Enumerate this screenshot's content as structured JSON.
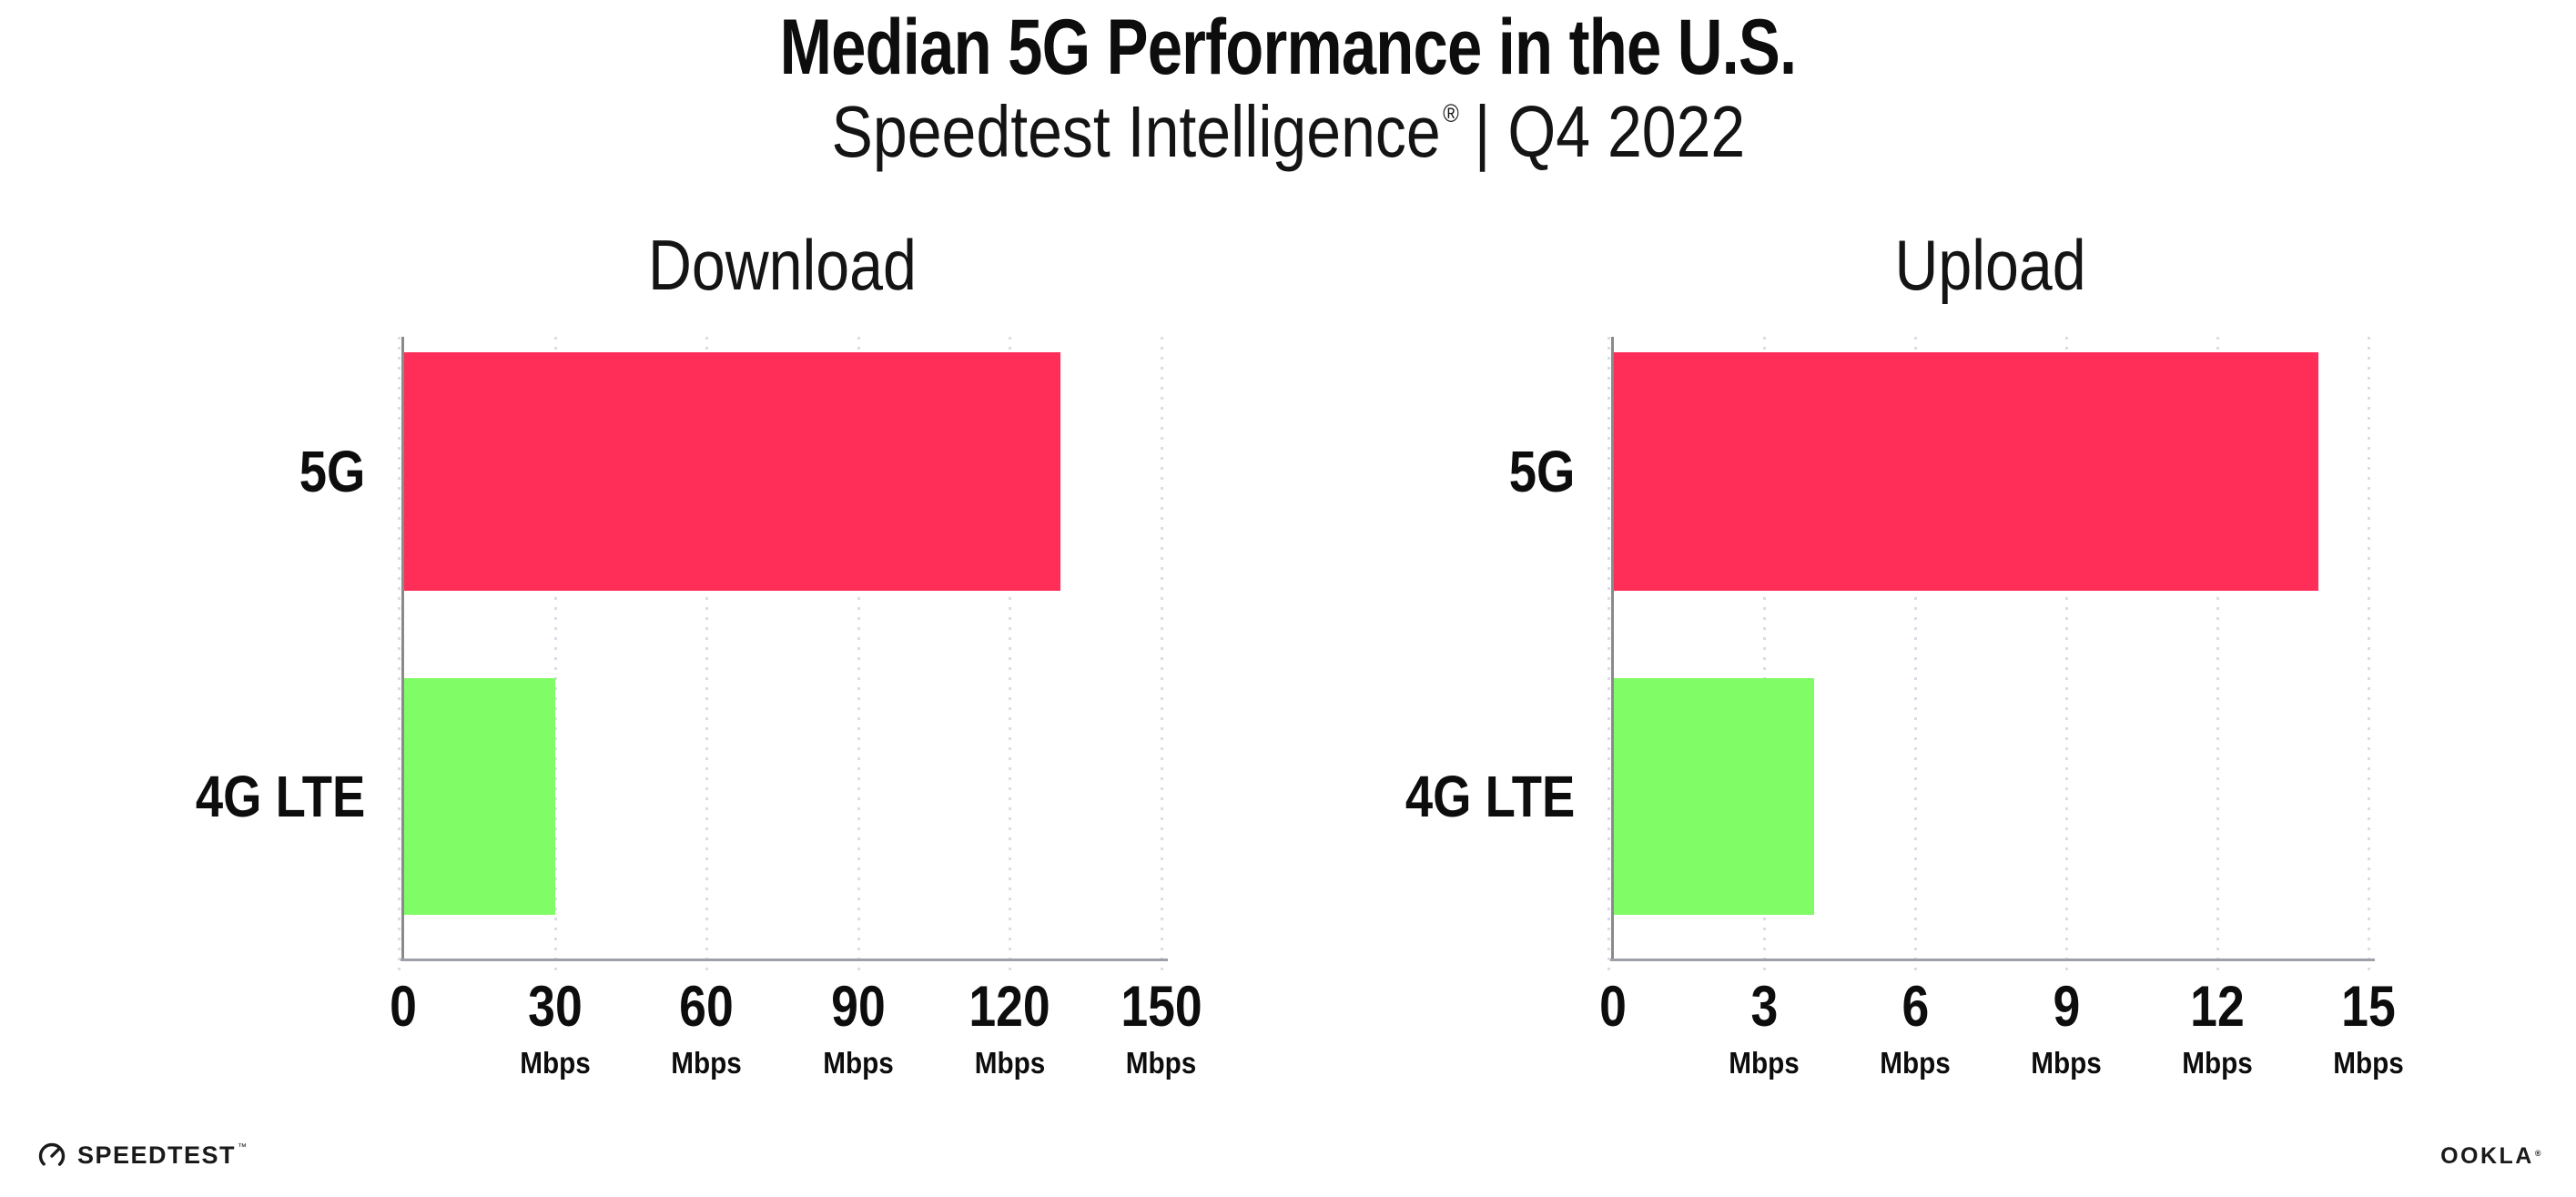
{
  "header": {
    "title": "Median 5G Performance in the U.S.",
    "subtitle_brand": "Speedtest Intelligence",
    "subtitle_reg": "®",
    "subtitle_rest": "| Q4 2022"
  },
  "colors": {
    "bar_5g": "#FF2E58",
    "bar_4g": "#80FC66",
    "grid_dot": "#DCDCE8",
    "y_axis": "#8A8A8A",
    "x_axis": "#9DA0A6",
    "text": "#0D0D0D"
  },
  "chart_data": [
    {
      "type": "bar",
      "orientation": "horizontal",
      "title": "Download",
      "categories": [
        "5G",
        "4G LTE"
      ],
      "values": [
        130,
        30
      ],
      "unit": "Mbps",
      "xlim": [
        0,
        150
      ],
      "xticks": [
        0,
        30,
        60,
        90,
        120,
        150
      ],
      "grid": "vertical-dotted",
      "legend": "none"
    },
    {
      "type": "bar",
      "orientation": "horizontal",
      "title": "Upload",
      "categories": [
        "5G",
        "4G LTE"
      ],
      "values": [
        14,
        4
      ],
      "unit": "Mbps",
      "xlim": [
        0,
        15
      ],
      "xticks": [
        0,
        3,
        6,
        9,
        12,
        15
      ],
      "grid": "vertical-dotted",
      "legend": "none"
    }
  ],
  "footer": {
    "speedtest": "SPEEDTEST",
    "speedtest_mark": "™",
    "ookla": "OOKLA",
    "ookla_mark": "®"
  }
}
